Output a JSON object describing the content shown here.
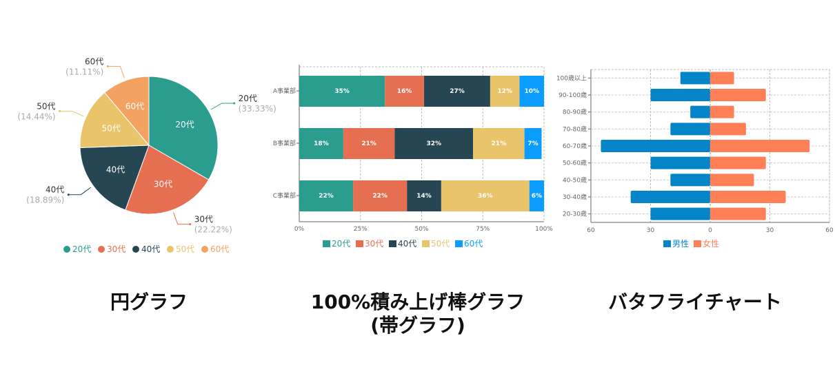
{
  "chart_data": [
    {
      "type": "pie",
      "title": "円グラフ",
      "categories": [
        "20代",
        "30代",
        "40代",
        "50代",
        "60代"
      ],
      "values": [
        33.33,
        22.22,
        18.89,
        14.44,
        11.11
      ],
      "percent_labels": [
        "(33.33%)",
        "(22.22%)",
        "(18.89%)",
        "(14.44%)",
        "(11.11%)"
      ],
      "colors": [
        "#2a9d8f",
        "#e76f51",
        "#264653",
        "#e9c46a",
        "#f4a261"
      ],
      "legend": "bottom"
    },
    {
      "type": "bar",
      "orientation": "horizontal",
      "stacked": "percent",
      "title": "100%積み上げ棒グラフ",
      "subtitle": "(帯グラフ)",
      "categories": [
        "A事業部",
        "B事業部",
        "C事業部"
      ],
      "series": [
        {
          "name": "20代",
          "color": "#2a9d8f",
          "values": [
            35,
            18,
            22
          ]
        },
        {
          "name": "30代",
          "color": "#e76f51",
          "values": [
            16,
            21,
            22
          ]
        },
        {
          "name": "40代",
          "color": "#264653",
          "values": [
            27,
            32,
            14
          ]
        },
        {
          "name": "50代",
          "color": "#e9c46a",
          "values": [
            12,
            21,
            36
          ]
        },
        {
          "name": "60代",
          "color": "#0a9dff",
          "values": [
            10,
            7,
            6
          ]
        }
      ],
      "xticks": [
        "0%",
        "25%",
        "50%",
        "75%",
        "100%"
      ],
      "xlim": [
        0,
        100
      ],
      "grid": true,
      "legend": "bottom"
    },
    {
      "type": "bar",
      "orientation": "horizontal",
      "variant": "butterfly",
      "title": "バタフライチャート",
      "categories": [
        "100歳以上",
        "90-100歳",
        "80-90歳",
        "70-80歳",
        "60-70歳",
        "50-60歳",
        "40-50歳",
        "30-40歳",
        "20-30歳"
      ],
      "series": [
        {
          "name": "男性",
          "color": "#0585c8",
          "values": [
            15,
            30,
            10,
            20,
            55,
            30,
            20,
            40,
            30
          ]
        },
        {
          "name": "女性",
          "color": "#ff7f57",
          "values": [
            12,
            28,
            12,
            18,
            50,
            28,
            22,
            38,
            28
          ]
        }
      ],
      "xticks": [
        "60",
        "30",
        "0",
        "30",
        "60"
      ],
      "xlim": [
        -60,
        60
      ],
      "grid": true,
      "legend": "bottom"
    }
  ]
}
